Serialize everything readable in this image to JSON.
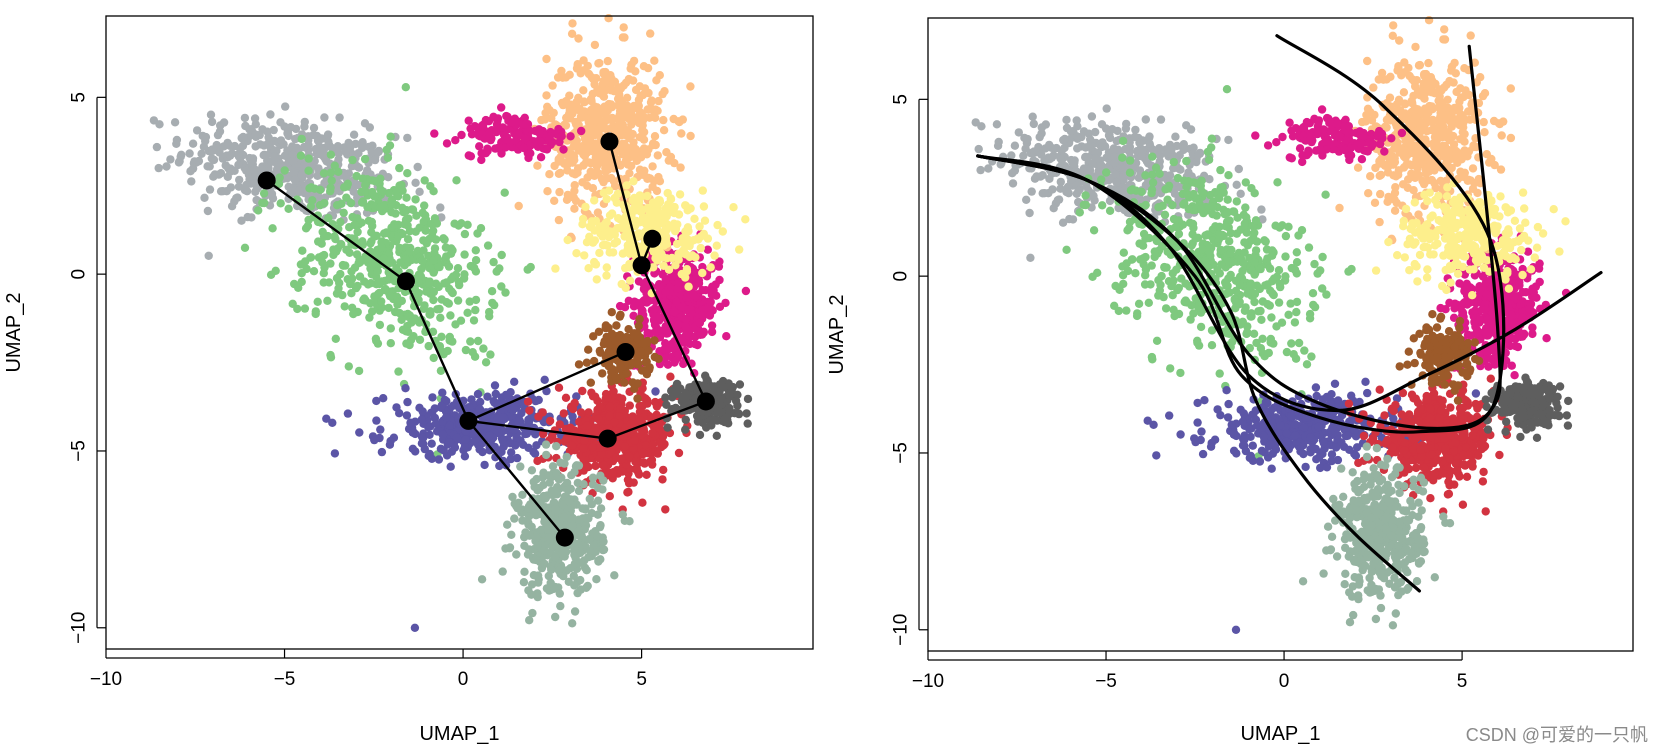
{
  "watermark": "CSDN @可爱的一只帆",
  "chart_data": [
    {
      "type": "scatter",
      "title": "",
      "xlabel": "UMAP_1",
      "ylabel": "UMAP_2",
      "xlim": [
        -10,
        9.8
      ],
      "ylim": [
        -10.6,
        7.3
      ],
      "xticks": [
        -10,
        -5,
        0,
        5
      ],
      "yticks": [
        5,
        0,
        -5,
        -10
      ],
      "xtick_labels": [
        "−10",
        "−5",
        "0",
        "5"
      ],
      "ytick_labels": [
        "5",
        "0",
        "−5",
        "−10"
      ],
      "grid": false,
      "legend": "none",
      "clusters": [
        {
          "name": "grey",
          "color": "#a7adb1",
          "center": [
            -4.8,
            3.0
          ],
          "spread": [
            2.0,
            0.9
          ],
          "n": 480
        },
        {
          "name": "green",
          "color": "#7fc97f",
          "center": [
            -2.0,
            0.4
          ],
          "spread": [
            1.7,
            1.9
          ],
          "n": 560
        },
        {
          "name": "magenta",
          "color": "#dd1a8a",
          "center": [
            6.0,
            -0.8
          ],
          "spread": [
            0.8,
            1.0
          ],
          "n": 420
        },
        {
          "name": "peach",
          "color": "#fdc086",
          "center": [
            4.0,
            4.0
          ],
          "spread": [
            1.1,
            1.5
          ],
          "n": 520
        },
        {
          "name": "yellow",
          "color": "#fdef8c",
          "center": [
            5.2,
            1.2
          ],
          "spread": [
            1.3,
            0.8
          ],
          "n": 300
        },
        {
          "name": "purple",
          "color": "#5b55a6",
          "center": [
            0.5,
            -4.3
          ],
          "spread": [
            1.8,
            0.6
          ],
          "n": 420
        },
        {
          "name": "red",
          "color": "#d23340",
          "center": [
            4.3,
            -4.6
          ],
          "spread": [
            1.1,
            0.8
          ],
          "n": 480
        },
        {
          "name": "brown",
          "color": "#9c5a2a",
          "center": [
            4.5,
            -2.2
          ],
          "spread": [
            0.5,
            0.5
          ],
          "n": 170
        },
        {
          "name": "darkgrey",
          "color": "#5e5e5e",
          "center": [
            6.8,
            -3.6
          ],
          "spread": [
            0.6,
            0.4
          ],
          "n": 220
        },
        {
          "name": "sage",
          "color": "#95b3a1",
          "center": [
            2.7,
            -7.3
          ],
          "spread": [
            0.8,
            1.2
          ],
          "n": 420
        },
        {
          "name": "pink",
          "color": "#dd1a8a",
          "center": [
            1.5,
            3.9
          ],
          "spread": [
            1.0,
            0.4
          ],
          "n": 140
        }
      ],
      "lineage_nodes": [
        {
          "x": -5.5,
          "y": 2.65
        },
        {
          "x": -1.6,
          "y": -0.2
        },
        {
          "x": 0.15,
          "y": -4.15
        },
        {
          "x": 2.85,
          "y": -7.45
        },
        {
          "x": 4.05,
          "y": -4.65
        },
        {
          "x": 4.55,
          "y": -2.2
        },
        {
          "x": 6.8,
          "y": -3.6
        },
        {
          "x": 5.0,
          "y": 0.25
        },
        {
          "x": 5.3,
          "y": 1.0
        },
        {
          "x": 4.1,
          "y": 3.75
        }
      ],
      "lineage_edges": [
        [
          0,
          1
        ],
        [
          1,
          2
        ],
        [
          2,
          3
        ],
        [
          2,
          4
        ],
        [
          4,
          6
        ],
        [
          2,
          5
        ],
        [
          6,
          7
        ],
        [
          7,
          8
        ],
        [
          7,
          9
        ]
      ]
    },
    {
      "type": "scatter",
      "title": "",
      "xlabel": "UMAP_1",
      "ylabel": "UMAP_2",
      "xlim": [
        -10,
        9.8
      ],
      "ylim": [
        -10.6,
        7.3
      ],
      "xticks": [
        -10,
        -5,
        0,
        5
      ],
      "yticks": [
        5,
        0,
        -5,
        -10
      ],
      "xtick_labels": [
        "−10",
        "−5",
        "0",
        "5"
      ],
      "ytick_labels": [
        "5",
        "0",
        "−5",
        "−10"
      ],
      "grid": false,
      "legend": "none",
      "principal_curves": [
        [
          [
            -8.6,
            3.4
          ],
          [
            -5.5,
            2.7
          ],
          [
            -3.0,
            1.0
          ],
          [
            -1.5,
            -1.0
          ],
          [
            -0.8,
            -3.5
          ],
          [
            0.5,
            -5.6
          ],
          [
            2.0,
            -7.3
          ],
          [
            3.8,
            -8.9
          ]
        ],
        [
          [
            -8.6,
            3.4
          ],
          [
            -5.5,
            2.7
          ],
          [
            -3.2,
            0.8
          ],
          [
            -1.0,
            -2.8
          ],
          [
            1.5,
            -3.8
          ],
          [
            4.0,
            -2.8
          ],
          [
            6.5,
            -1.5
          ],
          [
            8.9,
            0.1
          ]
        ],
        [
          [
            -8.6,
            3.4
          ],
          [
            -5.5,
            2.7
          ],
          [
            -3.0,
            1.0
          ],
          [
            -1.0,
            -2.2
          ],
          [
            1.0,
            -3.6
          ],
          [
            4.0,
            -4.3
          ],
          [
            5.8,
            -3.8
          ],
          [
            6.0,
            -1.5
          ],
          [
            5.2,
            6.5
          ]
        ],
        [
          [
            -8.6,
            3.4
          ],
          [
            -5.5,
            2.7
          ],
          [
            -2.5,
            0.0
          ],
          [
            -1.2,
            -2.8
          ],
          [
            1.0,
            -4.0
          ],
          [
            3.8,
            -4.4
          ],
          [
            5.9,
            -3.6
          ],
          [
            5.8,
            1.0
          ],
          [
            2.8,
            4.8
          ],
          [
            -0.2,
            6.8
          ]
        ]
      ]
    }
  ]
}
